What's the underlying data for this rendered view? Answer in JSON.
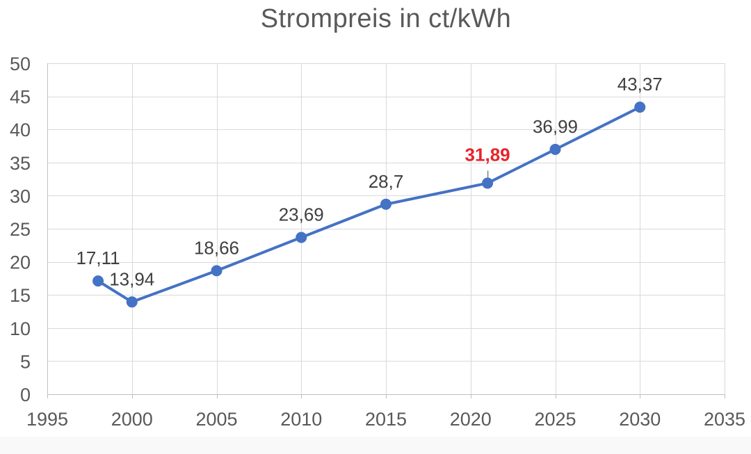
{
  "page": {
    "background_color": "#ffffff",
    "footer_strip_color": "#f9f9f9"
  },
  "chart_data": {
    "type": "line",
    "title": "Strompreis in ct/kWh",
    "xlabel": "",
    "ylabel": "",
    "xlim": [
      1995,
      2035
    ],
    "ylim": [
      0,
      50
    ],
    "x_ticks": [
      1995,
      2000,
      2005,
      2010,
      2015,
      2020,
      2025,
      2030,
      2035
    ],
    "y_ticks": [
      0,
      5,
      10,
      15,
      20,
      25,
      30,
      35,
      40,
      45,
      50
    ],
    "grid": true,
    "legend": "none",
    "points": [
      {
        "x": 1998,
        "y": 17.11,
        "label": "17,11"
      },
      {
        "x": 2000,
        "y": 13.94,
        "label": "13,94"
      },
      {
        "x": 2005,
        "y": 18.66,
        "label": "18,66"
      },
      {
        "x": 2010,
        "y": 23.69,
        "label": "23,69"
      },
      {
        "x": 2015,
        "y": 28.7,
        "label": "28,7"
      },
      {
        "x": 2021,
        "y": 31.89,
        "label": "31,89",
        "highlight": true
      },
      {
        "x": 2025,
        "y": 36.99,
        "label": "36,99"
      },
      {
        "x": 2030,
        "y": 43.37,
        "label": "43,37"
      }
    ],
    "highlight_style": {
      "color": "#e8232b",
      "bold": true,
      "leader_line": true
    },
    "colors": {
      "line": "#4472c4",
      "marker": "#4472c4",
      "data_label": "#404040",
      "axis_label": "#595959",
      "title": "#595959",
      "gridline": "#d9d9d9",
      "axis_line": "#bfbfbf",
      "leader_line": "#808080"
    }
  }
}
